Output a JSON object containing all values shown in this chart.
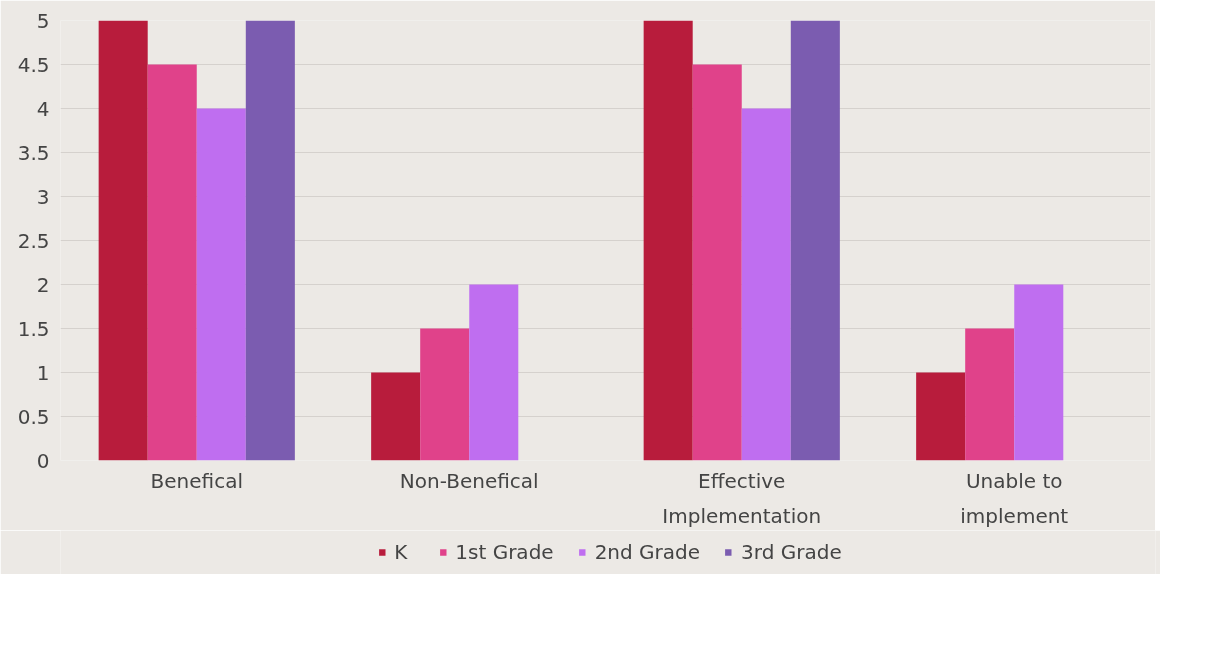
{
  "chart_data": {
    "type": "bar",
    "categories": [
      "Benefical",
      "Non-Benefical",
      "Effective Implementation",
      "Unable to implement"
    ],
    "series": [
      {
        "name": "K",
        "color": "#b81c3c",
        "values": [
          5,
          1,
          5,
          1
        ]
      },
      {
        "name": "1st Grade",
        "color": "#e0428a",
        "values": [
          4.5,
          1.5,
          4.5,
          1.5
        ]
      },
      {
        "name": "2nd Grade",
        "color": "#bf6ef0",
        "values": [
          4,
          2,
          4,
          2
        ]
      },
      {
        "name": "3rd Grade",
        "color": "#7b5cb0",
        "values": [
          5,
          0,
          5,
          0
        ]
      }
    ],
    "ylim": [
      0,
      5
    ],
    "yticks": [
      0,
      0.5,
      1,
      1.5,
      2,
      2.5,
      3,
      3.5,
      4,
      4.5,
      5
    ],
    "grid": "y",
    "legend": "bottom"
  }
}
